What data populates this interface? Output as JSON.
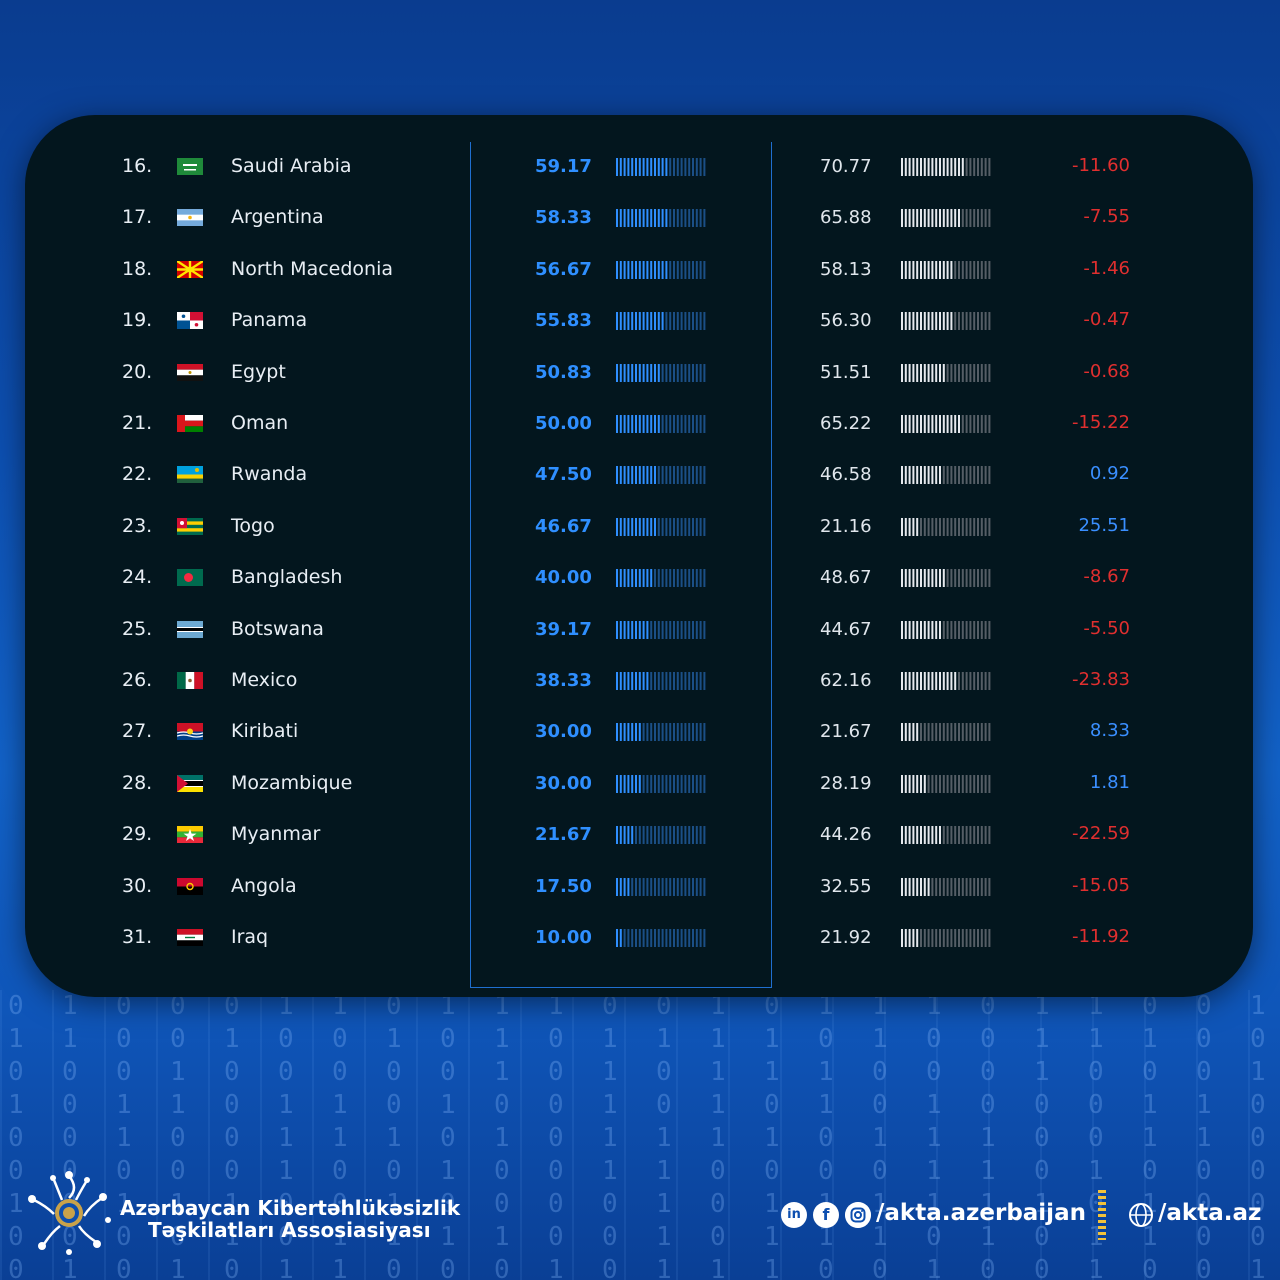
{
  "rows": [
    {
      "rank": "16.",
      "country": "Saudi Arabia",
      "score_2024": "59.17",
      "score_2023": "70.77",
      "diff": "-11.60",
      "sign": "neg",
      "v24": 59.17,
      "v23": 70.77,
      "flag": "saudi-arabia"
    },
    {
      "rank": "17.",
      "country": "Argentina",
      "score_2024": "58.33",
      "score_2023": "65.88",
      "diff": "-7.55",
      "sign": "neg",
      "v24": 58.33,
      "v23": 65.88,
      "flag": "argentina"
    },
    {
      "rank": "18.",
      "country": "North Macedonia",
      "score_2024": "56.67",
      "score_2023": "58.13",
      "diff": "-1.46",
      "sign": "neg",
      "v24": 56.67,
      "v23": 58.13,
      "flag": "north-macedonia"
    },
    {
      "rank": "19.",
      "country": "Panama",
      "score_2024": "55.83",
      "score_2023": "56.30",
      "diff": "-0.47",
      "sign": "neg",
      "v24": 55.83,
      "v23": 56.3,
      "flag": "panama"
    },
    {
      "rank": "20.",
      "country": "Egypt",
      "score_2024": "50.83",
      "score_2023": "51.51",
      "diff": "-0.68",
      "sign": "neg",
      "v24": 50.83,
      "v23": 51.51,
      "flag": "egypt"
    },
    {
      "rank": "21.",
      "country": "Oman",
      "score_2024": "50.00",
      "score_2023": "65.22",
      "diff": "-15.22",
      "sign": "neg",
      "v24": 50.0,
      "v23": 65.22,
      "flag": "oman"
    },
    {
      "rank": "22.",
      "country": "Rwanda",
      "score_2024": "47.50",
      "score_2023": "46.58",
      "diff": "0.92",
      "sign": "pos",
      "v24": 47.5,
      "v23": 46.58,
      "flag": "rwanda"
    },
    {
      "rank": "23.",
      "country": "Togo",
      "score_2024": "46.67",
      "score_2023": "21.16",
      "diff": "25.51",
      "sign": "pos",
      "v24": 46.67,
      "v23": 21.16,
      "flag": "togo"
    },
    {
      "rank": "24.",
      "country": "Bangladesh",
      "score_2024": "40.00",
      "score_2023": "48.67",
      "diff": "-8.67",
      "sign": "neg",
      "v24": 40.0,
      "v23": 48.67,
      "flag": "bangladesh"
    },
    {
      "rank": "25.",
      "country": "Botswana",
      "score_2024": "39.17",
      "score_2023": "44.67",
      "diff": "-5.50",
      "sign": "neg",
      "v24": 39.17,
      "v23": 44.67,
      "flag": "botswana"
    },
    {
      "rank": "26.",
      "country": "Mexico",
      "score_2024": "38.33",
      "score_2023": "62.16",
      "diff": "-23.83",
      "sign": "neg",
      "v24": 38.33,
      "v23": 62.16,
      "flag": "mexico"
    },
    {
      "rank": "27.",
      "country": "Kiribati",
      "score_2024": "30.00",
      "score_2023": "21.67",
      "diff": "8.33",
      "sign": "pos",
      "v24": 30.0,
      "v23": 21.67,
      "flag": "kiribati"
    },
    {
      "rank": "28.",
      "country": "Mozambique",
      "score_2024": "30.00",
      "score_2023": "28.19",
      "diff": "1.81",
      "sign": "pos",
      "v24": 30.0,
      "v23": 28.19,
      "flag": "mozambique"
    },
    {
      "rank": "29.",
      "country": "Myanmar",
      "score_2024": "21.67",
      "score_2023": "44.26",
      "diff": "-22.59",
      "sign": "neg",
      "v24": 21.67,
      "v23": 44.26,
      "flag": "myanmar"
    },
    {
      "rank": "30.",
      "country": "Angola",
      "score_2024": "17.50",
      "score_2023": "32.55",
      "diff": "-15.05",
      "sign": "neg",
      "v24": 17.5,
      "v23": 32.55,
      "flag": "angola"
    },
    {
      "rank": "31.",
      "country": "Iraq",
      "score_2024": "10.00",
      "score_2023": "21.92",
      "diff": "-11.92",
      "sign": "neg",
      "v24": 10.0,
      "v23": 21.92,
      "flag": "iraq"
    }
  ],
  "colors": {
    "bar_2024_fill": "#2f8fff",
    "bar_2024_empty": "#1b4f86",
    "bar_2023_fill": "#e6e9ee",
    "bar_2023_empty": "#555e66",
    "negative": "#e02f2f",
    "positive": "#3a8fff"
  },
  "footer": {
    "org_line1": "Azərbaycan Kibertəhlükəsizlik",
    "org_line2": "Təşkilatları Assosiasiyası",
    "social_handle": "/akta.azerbaijan",
    "website": "/akta.az",
    "icons": [
      "linkedin-icon",
      "facebook-icon",
      "instagram-icon",
      "globe-icon"
    ],
    "linkedin_glyph": "in",
    "facebook_glyph": "f"
  }
}
